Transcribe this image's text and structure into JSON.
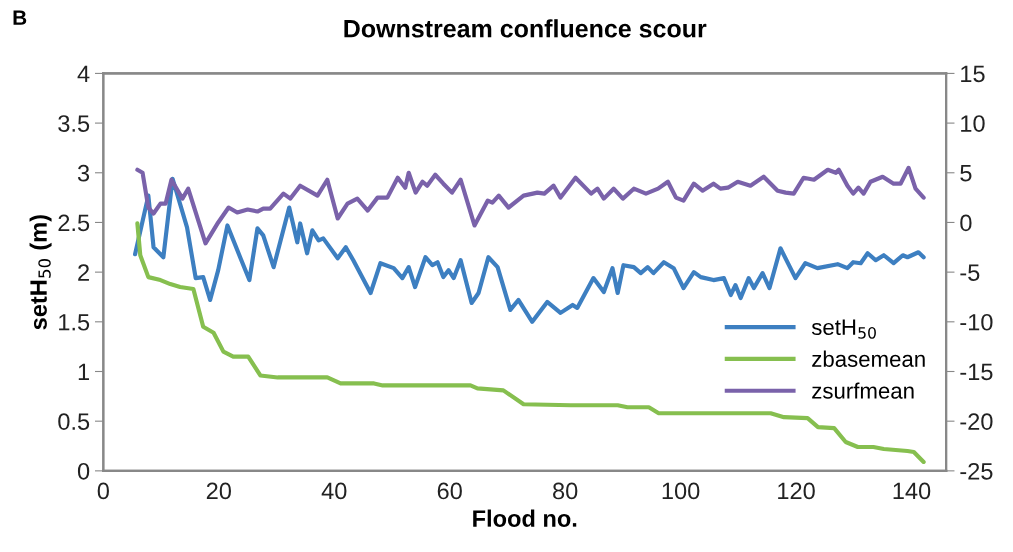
{
  "chart_data": {
    "type": "line",
    "title": "Downstream confluence scour",
    "xlabel": "Flood no.",
    "ylabel": "setH$_{50}$ (m)",
    "annotations": [
      "B"
    ],
    "xlim": [
      0,
      146
    ],
    "xticks": [
      0,
      20,
      40,
      60,
      80,
      100,
      120,
      140
    ],
    "ylim": [
      0,
      4
    ],
    "yticks": [
      0,
      0.5,
      1,
      1.5,
      2,
      2.5,
      3,
      3.5,
      4
    ],
    "y2lim": [
      -25,
      15
    ],
    "y2ticks": [
      -25,
      -20,
      -15,
      -10,
      -5,
      0,
      5,
      10,
      15
    ],
    "legend": "bottom right",
    "grid": false,
    "marker": "none",
    "line_style": "solid",
    "series": [
      {
        "name": "setH$_{50}$",
        "color": "#3d7fc1",
        "x": [
          5.5,
          7.8,
          8.7,
          10.4,
          12,
          14.5,
          16,
          17.3,
          18.5,
          19.9,
          21.5,
          23.7,
          25.3,
          26.7,
          27.7,
          29.5,
          32.2,
          33.6,
          34.1,
          35.3,
          36.2,
          37.3,
          38.1,
          40.6,
          42,
          43.3,
          46.3,
          48,
          50.3,
          51.8,
          52.9,
          54,
          55.8,
          57,
          57.9,
          58.9,
          59.8,
          60.7,
          61.9,
          63.8,
          65,
          66.7,
          68.3,
          70.5,
          71.9,
          74.3,
          76.9,
          79.2,
          81.3,
          82.1,
          84.9,
          86.7,
          88.2,
          89.1,
          90.1,
          91.9,
          93.1,
          94.3,
          95.3,
          97.1,
          98.8,
          100.5,
          102.3,
          103.5,
          105.7,
          107.5,
          108.7,
          109.5,
          110.4,
          111.8,
          112.7,
          114.2,
          115.4,
          117.3,
          119.9,
          121.6,
          123.7,
          127.2,
          128.9,
          129.9,
          131.2,
          132.4,
          133.8,
          135.2,
          136.9,
          138.5,
          139.3,
          141.2,
          142.1
        ],
        "values": [
          2.18,
          2.77,
          2.25,
          2.15,
          2.94,
          2.45,
          1.94,
          1.95,
          1.72,
          2.02,
          2.47,
          2.15,
          1.92,
          2.44,
          2.37,
          2.05,
          2.65,
          2.3,
          2.49,
          2.19,
          2.42,
          2.32,
          2.34,
          2.14,
          2.25,
          2.12,
          1.79,
          2.09,
          2.04,
          1.94,
          2.05,
          1.85,
          2.15,
          2.07,
          2.1,
          1.95,
          2.02,
          1.94,
          2.12,
          1.69,
          1.79,
          2.15,
          2.05,
          1.62,
          1.72,
          1.5,
          1.7,
          1.59,
          1.67,
          1.64,
          1.94,
          1.8,
          2.04,
          1.79,
          2.07,
          2.05,
          1.99,
          2.05,
          1.99,
          2.1,
          2.04,
          1.84,
          2.0,
          1.95,
          1.92,
          1.94,
          1.77,
          1.87,
          1.74,
          1.94,
          1.84,
          1.99,
          1.84,
          2.24,
          1.94,
          2.09,
          2.04,
          2.08,
          2.04,
          2.1,
          2.09,
          2.19,
          2.12,
          2.17,
          2.09,
          2.17,
          2.15,
          2.2,
          2.15
        ]
      },
      {
        "name": "zbasemean",
        "color": "#86bf4f",
        "axis": "y2",
        "x": [
          5.9,
          6.4,
          7.8,
          9.9,
          11.6,
          13.3,
          15.6,
          17.3,
          19.1,
          20.8,
          22.5,
          25.1,
          27.2,
          30.2,
          38.8,
          41.1,
          46.9,
          48.4,
          63.6,
          64.8,
          69.3,
          72.8,
          81,
          89.1,
          90.8,
          94.5,
          96.2,
          115.6,
          117.9,
          122,
          123.8,
          126.6,
          128.6,
          130.7,
          133.4,
          135.2,
          139.3,
          140.4,
          142.1
        ],
        "values": [
          -0.1,
          -3.3,
          -5.5,
          -5.8,
          -6.2,
          -6.5,
          -6.7,
          -10.5,
          -11.1,
          -13.0,
          -13.5,
          -13.5,
          -15.4,
          -15.6,
          -15.6,
          -16.2,
          -16.2,
          -16.4,
          -16.4,
          -16.7,
          -16.9,
          -18.3,
          -18.4,
          -18.4,
          -18.6,
          -18.6,
          -19.2,
          -19.2,
          -19.6,
          -19.7,
          -20.6,
          -20.7,
          -22.1,
          -22.6,
          -22.6,
          -22.8,
          -23.0,
          -23.1,
          -24.1
        ]
      },
      {
        "name": "zsurfmean",
        "color": "#7a62aa",
        "axis": "y2",
        "x": [
          5.9,
          6.8,
          7.8,
          8.7,
          9.9,
          10.8,
          11.8,
          13.7,
          14.7,
          17.7,
          19.9,
          21.7,
          23.2,
          25,
          26.7,
          27.7,
          28.9,
          31.2,
          32.4,
          34.1,
          37.1,
          38.8,
          40.6,
          42.3,
          44,
          45.8,
          47.5,
          49.2,
          51,
          52.3,
          52.9,
          54.1,
          55.3,
          56.1,
          57.5,
          58.9,
          60.4,
          61.9,
          64.3,
          66.6,
          67.4,
          68.5,
          70.2,
          72.8,
          75.2,
          76.4,
          78,
          79.2,
          81.8,
          84.5,
          85.6,
          86.7,
          88.4,
          90,
          91.9,
          94,
          96.1,
          97.8,
          99.2,
          100.5,
          102.3,
          103.8,
          105.7,
          106.9,
          108.2,
          109.9,
          112.1,
          114.4,
          116.8,
          118.2,
          119.6,
          121.3,
          123.1,
          124.3,
          125.5,
          126.9,
          127.4,
          128.9,
          129.9,
          130.8,
          131.7,
          132.9,
          135,
          136.9,
          138.1,
          139.5,
          140.7,
          142.1
        ],
        "values": [
          5.3,
          5.0,
          1.5,
          0.9,
          1.9,
          1.9,
          4.3,
          2.4,
          3.4,
          -2.1,
          0.0,
          1.5,
          1.0,
          1.3,
          1.1,
          1.4,
          1.4,
          2.9,
          2.4,
          3.7,
          2.7,
          4.3,
          0.4,
          1.9,
          2.4,
          1.2,
          2.5,
          2.5,
          4.5,
          3.5,
          5.0,
          3.0,
          4.1,
          3.7,
          4.8,
          3.9,
          3.0,
          4.3,
          -0.3,
          2.2,
          2.0,
          2.7,
          1.5,
          2.7,
          3.0,
          2.9,
          3.7,
          2.5,
          4.5,
          2.9,
          3.4,
          2.4,
          3.4,
          2.4,
          3.4,
          2.9,
          3.4,
          4.1,
          2.5,
          2.2,
          3.9,
          3.2,
          3.9,
          3.4,
          3.5,
          4.1,
          3.7,
          4.6,
          3.2,
          3.0,
          2.9,
          4.5,
          4.3,
          4.8,
          5.3,
          5.0,
          5.3,
          3.7,
          2.9,
          3.5,
          2.9,
          4.1,
          4.6,
          3.9,
          3.9,
          5.5,
          3.4,
          2.5
        ]
      }
    ]
  }
}
